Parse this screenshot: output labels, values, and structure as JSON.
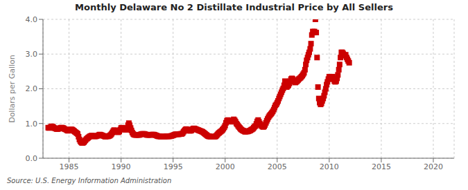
{
  "chart_data": {
    "type": "scatter",
    "title": "Monthly Delaware No 2 Distillate Industrial Price by All Sellers",
    "ylabel": "Dollars per Gallon",
    "annotations": [
      "Source: U.S. Energy Information Administration"
    ],
    "color": "#cc0000",
    "marker": "square",
    "grid": true,
    "xlim": [
      1982.5,
      2022
    ],
    "ylim": [
      0.0,
      4.0
    ],
    "xticks": [
      1985,
      1990,
      1995,
      2000,
      2005,
      2010,
      2015,
      2020
    ],
    "yticks": [
      {
        "value": 0.0,
        "label": "0.0"
      },
      {
        "value": 1.0,
        "label": "1.0"
      },
      {
        "value": 2.0,
        "label": "2.0"
      },
      {
        "value": 3.0,
        "label": "3.0"
      },
      {
        "value": 4.0,
        "label": "4.0"
      }
    ],
    "x": [
      1983.0,
      1983.08,
      1983.17,
      1983.25,
      1983.33,
      1983.42,
      1983.5,
      1983.58,
      1983.67,
      1983.75,
      1983.83,
      1983.92,
      1984.0,
      1984.08,
      1984.17,
      1984.25,
      1984.33,
      1984.42,
      1984.5,
      1984.58,
      1984.67,
      1984.75,
      1984.83,
      1984.92,
      1985.0,
      1985.08,
      1985.17,
      1985.25,
      1985.33,
      1985.42,
      1985.5,
      1985.58,
      1985.67,
      1985.75,
      1985.83,
      1985.92,
      1986.0,
      1986.08,
      1986.17,
      1986.25,
      1986.33,
      1986.42,
      1986.5,
      1986.58,
      1986.67,
      1986.75,
      1986.83,
      1986.92,
      1987.0,
      1987.08,
      1987.17,
      1987.25,
      1987.33,
      1987.42,
      1987.5,
      1987.58,
      1987.67,
      1987.75,
      1987.83,
      1987.92,
      1988.0,
      1988.08,
      1988.17,
      1988.25,
      1988.33,
      1988.42,
      1988.5,
      1988.58,
      1988.67,
      1988.75,
      1988.83,
      1988.92,
      1989.0,
      1989.08,
      1989.17,
      1989.25,
      1989.33,
      1989.42,
      1989.5,
      1989.58,
      1989.67,
      1989.75,
      1989.83,
      1989.92,
      1990.0,
      1990.08,
      1990.17,
      1990.25,
      1990.33,
      1990.42,
      1990.5,
      1990.58,
      1990.67,
      1990.75,
      1990.83,
      1990.92,
      1991.0,
      1991.08,
      1991.17,
      1991.25,
      1991.33,
      1991.42,
      1991.5,
      1991.58,
      1991.67,
      1991.75,
      1991.83,
      1991.92,
      1992.0,
      1992.08,
      1992.17,
      1992.25,
      1992.33,
      1992.42,
      1992.5,
      1992.58,
      1992.67,
      1992.75,
      1992.83,
      1992.92,
      1993.0,
      1993.08,
      1993.17,
      1993.25,
      1993.33,
      1993.42,
      1993.5,
      1993.58,
      1993.67,
      1993.75,
      1993.83,
      1993.92,
      1994.0,
      1994.08,
      1994.17,
      1994.25,
      1994.33,
      1994.42,
      1994.5,
      1994.58,
      1994.67,
      1994.75,
      1994.83,
      1994.92,
      1995.0,
      1995.08,
      1995.17,
      1995.25,
      1995.33,
      1995.42,
      1995.5,
      1995.58,
      1995.67,
      1995.75,
      1995.83,
      1995.92,
      1996.0,
      1996.08,
      1996.17,
      1996.25,
      1996.33,
      1996.42,
      1996.5,
      1996.58,
      1996.67,
      1996.75,
      1996.83,
      1996.92,
      1997.0,
      1997.08,
      1997.17,
      1997.25,
      1997.33,
      1997.42,
      1997.5,
      1997.58,
      1997.67,
      1997.75,
      1997.83,
      1997.92,
      1998.0,
      1998.08,
      1998.17,
      1998.25,
      1998.33,
      1998.42,
      1998.5,
      1998.58,
      1998.67,
      1998.75,
      1998.83,
      1998.92,
      1999.0,
      1999.08,
      1999.17,
      1999.25,
      1999.33,
      1999.42,
      1999.5,
      1999.58,
      1999.67,
      1999.75,
      1999.83,
      1999.92,
      2000.0,
      2000.08,
      2000.17,
      2000.25,
      2000.33,
      2000.42,
      2000.5,
      2000.58,
      2000.67,
      2000.75,
      2000.83,
      2000.92,
      2001.0,
      2001.08,
      2001.17,
      2001.25,
      2001.33,
      2001.42,
      2001.5,
      2001.58,
      2001.67,
      2001.75,
      2001.83,
      2001.92,
      2002.0,
      2002.08,
      2002.17,
      2002.25,
      2002.33,
      2002.42,
      2002.5,
      2002.58,
      2002.67,
      2002.75,
      2002.83,
      2002.92,
      2003.0,
      2003.08,
      2003.17,
      2003.25,
      2003.33,
      2003.42,
      2003.5,
      2003.58,
      2003.67,
      2003.75,
      2003.83,
      2003.92,
      2004.0,
      2004.08,
      2004.17,
      2004.25,
      2004.33,
      2004.42,
      2004.5,
      2004.58,
      2004.67,
      2004.75,
      2004.83,
      2004.92,
      2005.0,
      2005.08,
      2005.17,
      2005.25,
      2005.33,
      2005.42,
      2005.5,
      2005.58,
      2005.67,
      2005.75,
      2005.83,
      2005.92,
      2006.0,
      2006.08,
      2006.17,
      2006.25,
      2006.33,
      2006.42,
      2006.5,
      2006.58,
      2006.67,
      2006.75,
      2006.83,
      2006.92,
      2007.0,
      2007.08,
      2007.17,
      2007.25,
      2007.33,
      2007.42,
      2007.5,
      2007.58,
      2007.67,
      2007.75,
      2007.83,
      2007.92,
      2008.0,
      2008.08,
      2008.17,
      2008.25,
      2008.33,
      2008.42,
      2008.5,
      2008.58,
      2008.67,
      2008.75,
      2008.83,
      2008.92,
      2009.0,
      2009.08,
      2009.17,
      2009.25,
      2009.33,
      2009.42,
      2009.5,
      2009.58,
      2009.67,
      2009.75,
      2009.83,
      2009.92,
      2010.0,
      2010.08,
      2010.17,
      2010.25,
      2010.33,
      2010.42,
      2010.5,
      2010.58,
      2010.67,
      2010.75,
      2010.83,
      2010.92,
      2011.0,
      2011.08,
      2011.17,
      2011.25,
      2011.33,
      2011.42,
      2011.5,
      2011.58,
      2011.67,
      2011.75,
      2011.83,
      2011.92
    ],
    "values": [
      0.88,
      0.87,
      0.88,
      0.9,
      0.92,
      0.91,
      0.89,
      0.87,
      0.86,
      0.85,
      0.84,
      0.84,
      0.85,
      0.86,
      0.87,
      0.88,
      0.88,
      0.87,
      0.86,
      0.84,
      0.83,
      0.82,
      0.8,
      0.79,
      0.8,
      0.82,
      0.83,
      0.83,
      0.82,
      0.8,
      0.78,
      0.76,
      0.74,
      0.72,
      0.7,
      0.62,
      0.54,
      0.49,
      0.46,
      0.44,
      0.44,
      0.46,
      0.49,
      0.52,
      0.55,
      0.57,
      0.59,
      0.61,
      0.63,
      0.64,
      0.65,
      0.65,
      0.64,
      0.63,
      0.63,
      0.63,
      0.64,
      0.65,
      0.66,
      0.68,
      0.68,
      0.67,
      0.66,
      0.65,
      0.64,
      0.63,
      0.62,
      0.63,
      0.63,
      0.63,
      0.64,
      0.65,
      0.67,
      0.7,
      0.74,
      0.78,
      0.81,
      0.8,
      0.78,
      0.76,
      0.75,
      0.75,
      0.77,
      0.82,
      0.87,
      0.88,
      0.87,
      0.85,
      0.83,
      0.82,
      0.82,
      0.87,
      0.95,
      1.01,
      0.95,
      0.87,
      0.8,
      0.74,
      0.7,
      0.68,
      0.67,
      0.67,
      0.67,
      0.67,
      0.67,
      0.67,
      0.68,
      0.69,
      0.7,
      0.7,
      0.7,
      0.7,
      0.69,
      0.68,
      0.67,
      0.67,
      0.67,
      0.67,
      0.67,
      0.68,
      0.68,
      0.68,
      0.68,
      0.67,
      0.66,
      0.65,
      0.64,
      0.63,
      0.63,
      0.63,
      0.62,
      0.62,
      0.62,
      0.62,
      0.62,
      0.63,
      0.63,
      0.63,
      0.63,
      0.63,
      0.63,
      0.64,
      0.64,
      0.65,
      0.66,
      0.67,
      0.68,
      0.69,
      0.69,
      0.69,
      0.69,
      0.69,
      0.7,
      0.7,
      0.7,
      0.72,
      0.76,
      0.79,
      0.82,
      0.84,
      0.83,
      0.82,
      0.8,
      0.79,
      0.79,
      0.8,
      0.83,
      0.85,
      0.86,
      0.85,
      0.84,
      0.83,
      0.82,
      0.81,
      0.8,
      0.79,
      0.78,
      0.77,
      0.76,
      0.74,
      0.72,
      0.7,
      0.68,
      0.66,
      0.64,
      0.63,
      0.63,
      0.62,
      0.62,
      0.62,
      0.62,
      0.62,
      0.62,
      0.63,
      0.65,
      0.68,
      0.71,
      0.73,
      0.75,
      0.77,
      0.79,
      0.82,
      0.85,
      0.89,
      0.94,
      1.02,
      1.08,
      1.1,
      1.08,
      1.06,
      1.05,
      1.06,
      1.07,
      1.09,
      1.12,
      1.09,
      1.05,
      1.0,
      0.97,
      0.93,
      0.9,
      0.87,
      0.84,
      0.82,
      0.8,
      0.79,
      0.78,
      0.76,
      0.77,
      0.77,
      0.77,
      0.78,
      0.79,
      0.8,
      0.82,
      0.83,
      0.85,
      0.88,
      0.91,
      0.93,
      0.99,
      1.06,
      1.1,
      1.05,
      1.0,
      0.96,
      0.93,
      0.91,
      0.9,
      0.92,
      0.96,
      1.02,
      1.08,
      1.13,
      1.18,
      1.22,
      1.25,
      1.28,
      1.31,
      1.35,
      1.4,
      1.46,
      1.52,
      1.55,
      1.6,
      1.65,
      1.72,
      1.78,
      1.84,
      1.9,
      1.96,
      2.01,
      2.1,
      2.22,
      2.12,
      2.05,
      2.08,
      2.1,
      2.15,
      2.22,
      2.28,
      2.3,
      2.28,
      2.25,
      2.2,
      2.18,
      2.2,
      2.22,
      2.25,
      2.28,
      2.3,
      2.32,
      2.35,
      2.38,
      2.42,
      2.46,
      2.55,
      2.7,
      2.82,
      2.9,
      2.98,
      3.05,
      3.15,
      3.3,
      3.55,
      3.65,
      3.62,
      3.65,
      4.0,
      3.62,
      2.9,
      2.05,
      1.72,
      1.6,
      1.55,
      1.58,
      1.65,
      1.72,
      1.8,
      1.9,
      2.0,
      2.12,
      2.2,
      2.28,
      2.35,
      2.3,
      2.28,
      2.32,
      2.35,
      2.28,
      2.22,
      2.2,
      2.22,
      2.3,
      2.4,
      2.55,
      2.7,
      2.9,
      3.05,
      3.05,
      3.02,
      2.98,
      2.95,
      2.98,
      2.9,
      2.85,
      2.8,
      2.75
    ]
  }
}
